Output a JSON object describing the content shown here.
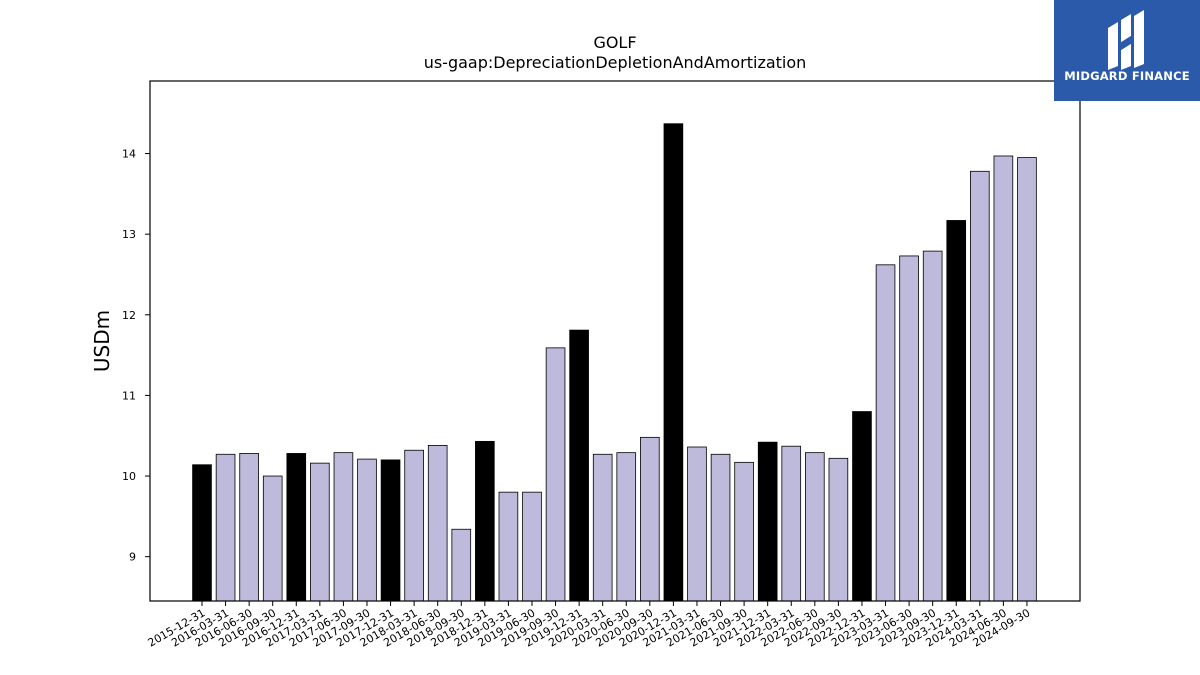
{
  "brand": {
    "name": "MIDGARD FINANCE",
    "bg_color": "#2b5aab",
    "icon": "midgard-logo-icon"
  },
  "chart_data": {
    "type": "bar",
    "title": "GOLF",
    "subtitle": "us-gaap:DepreciationDepletionAndAmortization",
    "ylabel": "USDm",
    "xlabel": "",
    "ylim": [
      8.45,
      14.9
    ],
    "yticks": [
      9,
      10,
      11,
      12,
      13,
      14
    ],
    "grid": false,
    "colors": {
      "annual": "#000000",
      "quarterly": "#bebadb",
      "edge": "#000000"
    },
    "categories": [
      "2015-12-31",
      "2016-03-31",
      "2016-06-30",
      "2016-09-30",
      "2016-12-31",
      "2017-03-31",
      "2017-06-30",
      "2017-09-30",
      "2017-12-31",
      "2018-03-31",
      "2018-06-30",
      "2018-09-30",
      "2018-12-31",
      "2019-03-31",
      "2019-06-30",
      "2019-09-30",
      "2019-12-31",
      "2020-03-31",
      "2020-06-30",
      "2020-09-30",
      "2020-12-31",
      "2021-03-31",
      "2021-06-30",
      "2021-09-30",
      "2021-12-31",
      "2022-03-31",
      "2022-06-30",
      "2022-09-30",
      "2022-12-31",
      "2023-03-31",
      "2023-06-30",
      "2023-09-30",
      "2023-12-31",
      "2024-03-31",
      "2024-06-30",
      "2024-09-30"
    ],
    "values": [
      10.14,
      10.27,
      10.28,
      10.0,
      10.28,
      10.16,
      10.29,
      10.21,
      10.2,
      10.32,
      10.38,
      9.34,
      10.43,
      9.8,
      9.8,
      11.59,
      11.81,
      10.27,
      10.29,
      10.48,
      14.37,
      10.36,
      10.27,
      10.17,
      10.42,
      10.37,
      10.29,
      10.22,
      10.8,
      12.62,
      12.73,
      12.79,
      13.17,
      13.78,
      13.97,
      13.95
    ],
    "annual_flags": [
      true,
      false,
      false,
      false,
      true,
      false,
      false,
      false,
      true,
      false,
      false,
      false,
      true,
      false,
      false,
      false,
      true,
      false,
      false,
      false,
      true,
      false,
      false,
      false,
      true,
      false,
      false,
      false,
      true,
      false,
      false,
      false,
      true,
      false,
      false,
      false
    ]
  }
}
